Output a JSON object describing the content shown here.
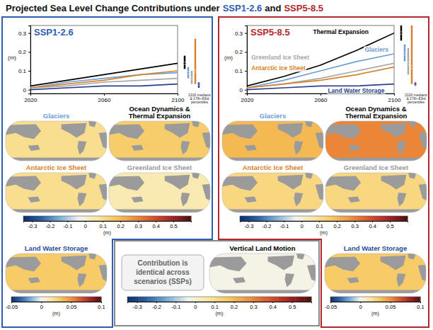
{
  "title": {
    "text": "Projected Sea Level Change Contributions under",
    "scenario_1": "SSP1-2.6",
    "joiner": "and",
    "scenario_2": "SSP5-8.5"
  },
  "chart_data": [
    {
      "type": "line",
      "title": "SSP1-2.6",
      "y_label": "(m)",
      "note": "2100 medians & 17th–83rd percentiles",
      "x": [
        2020,
        2040,
        2060,
        2080,
        2100
      ],
      "xlim": [
        2020,
        2100
      ],
      "xticks": [
        2020,
        2060,
        2100
      ],
      "ylim": [
        -0.02,
        0.34
      ],
      "yticks": [
        0,
        0.1,
        0.2,
        0.3
      ],
      "series": [
        {
          "color": "#000000",
          "values": [
            0.02,
            0.05,
            0.08,
            0.11,
            0.14
          ],
          "median_2100": 0.14,
          "percentiles_2100": [
            0.11,
            0.18
          ]
        },
        {
          "color": "#6d9ed6",
          "values": [
            0.01,
            0.04,
            0.06,
            0.08,
            0.09
          ],
          "median_2100": 0.09,
          "percentiles_2100": [
            0.06,
            0.12
          ]
        },
        {
          "color": "#a8a8a8",
          "values": [
            0.01,
            0.02,
            0.04,
            0.05,
            0.06
          ],
          "median_2100": 0.06,
          "percentiles_2100": [
            0.03,
            0.1
          ]
        },
        {
          "color": "#d9822b",
          "values": [
            0.01,
            0.03,
            0.05,
            0.08,
            0.1
          ],
          "median_2100": 0.1,
          "percentiles_2100": [
            0.03,
            0.27
          ]
        },
        {
          "color": "#2a3f8f",
          "values": [
            0.0,
            0.01,
            0.02,
            0.02,
            0.03
          ],
          "median_2100": 0.03,
          "percentiles_2100": [
            0.01,
            0.04
          ]
        }
      ]
    },
    {
      "type": "line",
      "title": "SSP5-8.5",
      "y_label": "(m)",
      "note": "2100 medians & 17th–83rd percentiles",
      "x": [
        2020,
        2040,
        2060,
        2080,
        2100
      ],
      "xlim": [
        2020,
        2100
      ],
      "xticks": [
        2020,
        2060,
        2100
      ],
      "ylim": [
        -0.02,
        0.34
      ],
      "yticks": [
        0,
        0.1,
        0.2,
        0.3
      ],
      "series": [
        {
          "name": "Thermal Expansion",
          "color": "#000000",
          "values": [
            0.02,
            0.07,
            0.13,
            0.21,
            0.3
          ],
          "median_2100": 0.3,
          "percentiles_2100": [
            0.26,
            0.34
          ]
        },
        {
          "name": "Glaciers",
          "color": "#6d9ed6",
          "values": [
            0.01,
            0.05,
            0.1,
            0.15,
            0.19
          ],
          "median_2100": 0.19,
          "percentiles_2100": [
            0.15,
            0.24
          ]
        },
        {
          "name": "Greenland Ice Sheet",
          "color": "#a8a8a8",
          "values": [
            0.01,
            0.03,
            0.06,
            0.1,
            0.14
          ],
          "median_2100": 0.14,
          "percentiles_2100": [
            0.08,
            0.22
          ]
        },
        {
          "name": "Antarctic Ice Sheet",
          "color": "#d9822b",
          "values": [
            0.01,
            0.03,
            0.05,
            0.08,
            0.12
          ],
          "median_2100": 0.12,
          "percentiles_2100": [
            0.03,
            0.34
          ]
        },
        {
          "name": "Land Water Storage",
          "color": "#2a3f8f",
          "values": [
            0.0,
            0.01,
            0.02,
            0.02,
            0.03
          ],
          "median_2100": 0.03,
          "percentiles_2100": [
            0.02,
            0.04
          ]
        }
      ]
    },
    {
      "type": "map",
      "title": "Glaciers",
      "color": "#6d9ed6",
      "value": 0.1
    },
    {
      "type": "map",
      "title": "Ocean Dynamics & Thermal Expansion",
      "color": "#000000",
      "value": 0.15
    },
    {
      "type": "map",
      "title": "Antarctic Ice Sheet",
      "color": "#d9822b",
      "value": 0.1
    },
    {
      "type": "map",
      "title": "Greenland Ice Sheet",
      "color": "#9a9a9a",
      "value": 0.05
    },
    {
      "type": "colorbar",
      "x_label": "(m)",
      "xlim": [
        -0.35,
        0.6
      ],
      "xticks": [
        -0.3,
        -0.2,
        -0.1,
        0,
        0.1,
        0.2,
        0.3,
        0.4,
        0.5
      ]
    },
    {
      "type": "map",
      "title": "Land Water Storage",
      "color": "#2a4a9a",
      "value": 0.03
    },
    {
      "type": "colorbar",
      "x_label": "(m)",
      "xlim": [
        -0.05,
        0.1
      ],
      "xticks": [
        -0.05,
        0,
        0.05,
        0.1
      ]
    },
    {
      "type": "map",
      "title": "Glaciers",
      "color": "#6d9ed6",
      "value": 0.2
    },
    {
      "type": "map",
      "title": "Ocean Dynamics & Thermal Expansion",
      "color": "#000000",
      "value": 0.3
    },
    {
      "type": "map",
      "title": "Antarctic Ice Sheet",
      "color": "#d9822b",
      "value": 0.12
    },
    {
      "type": "map",
      "title": "Greenland Ice Sheet",
      "color": "#9a9a9a",
      "value": 0.12
    },
    {
      "type": "colorbar",
      "x_label": "(m)",
      "xlim": [
        -0.35,
        0.6
      ],
      "xticks": [
        -0.3,
        -0.2,
        -0.1,
        0,
        0.1,
        0.2,
        0.3,
        0.4,
        0.5
      ]
    },
    {
      "type": "map",
      "title": "Land Water Storage",
      "color": "#2a4a9a",
      "value": 0.03
    },
    {
      "type": "colorbar",
      "x_label": "(m)",
      "xlim": [
        -0.05,
        0.1
      ],
      "xticks": [
        -0.05,
        0,
        0.05,
        0.1
      ]
    },
    {
      "type": "map",
      "title": "Vertical Land Motion",
      "color": "#000000",
      "value": -0.02,
      "note": "Contribution is identical across scenarios (SSPs)"
    },
    {
      "type": "colorbar",
      "x_label": "(m)",
      "xlim": [
        -0.35,
        0.6
      ],
      "xticks": [
        -0.3,
        -0.2,
        -0.1,
        0,
        0.1,
        0.2,
        0.3,
        0.4,
        0.5
      ]
    }
  ]
}
